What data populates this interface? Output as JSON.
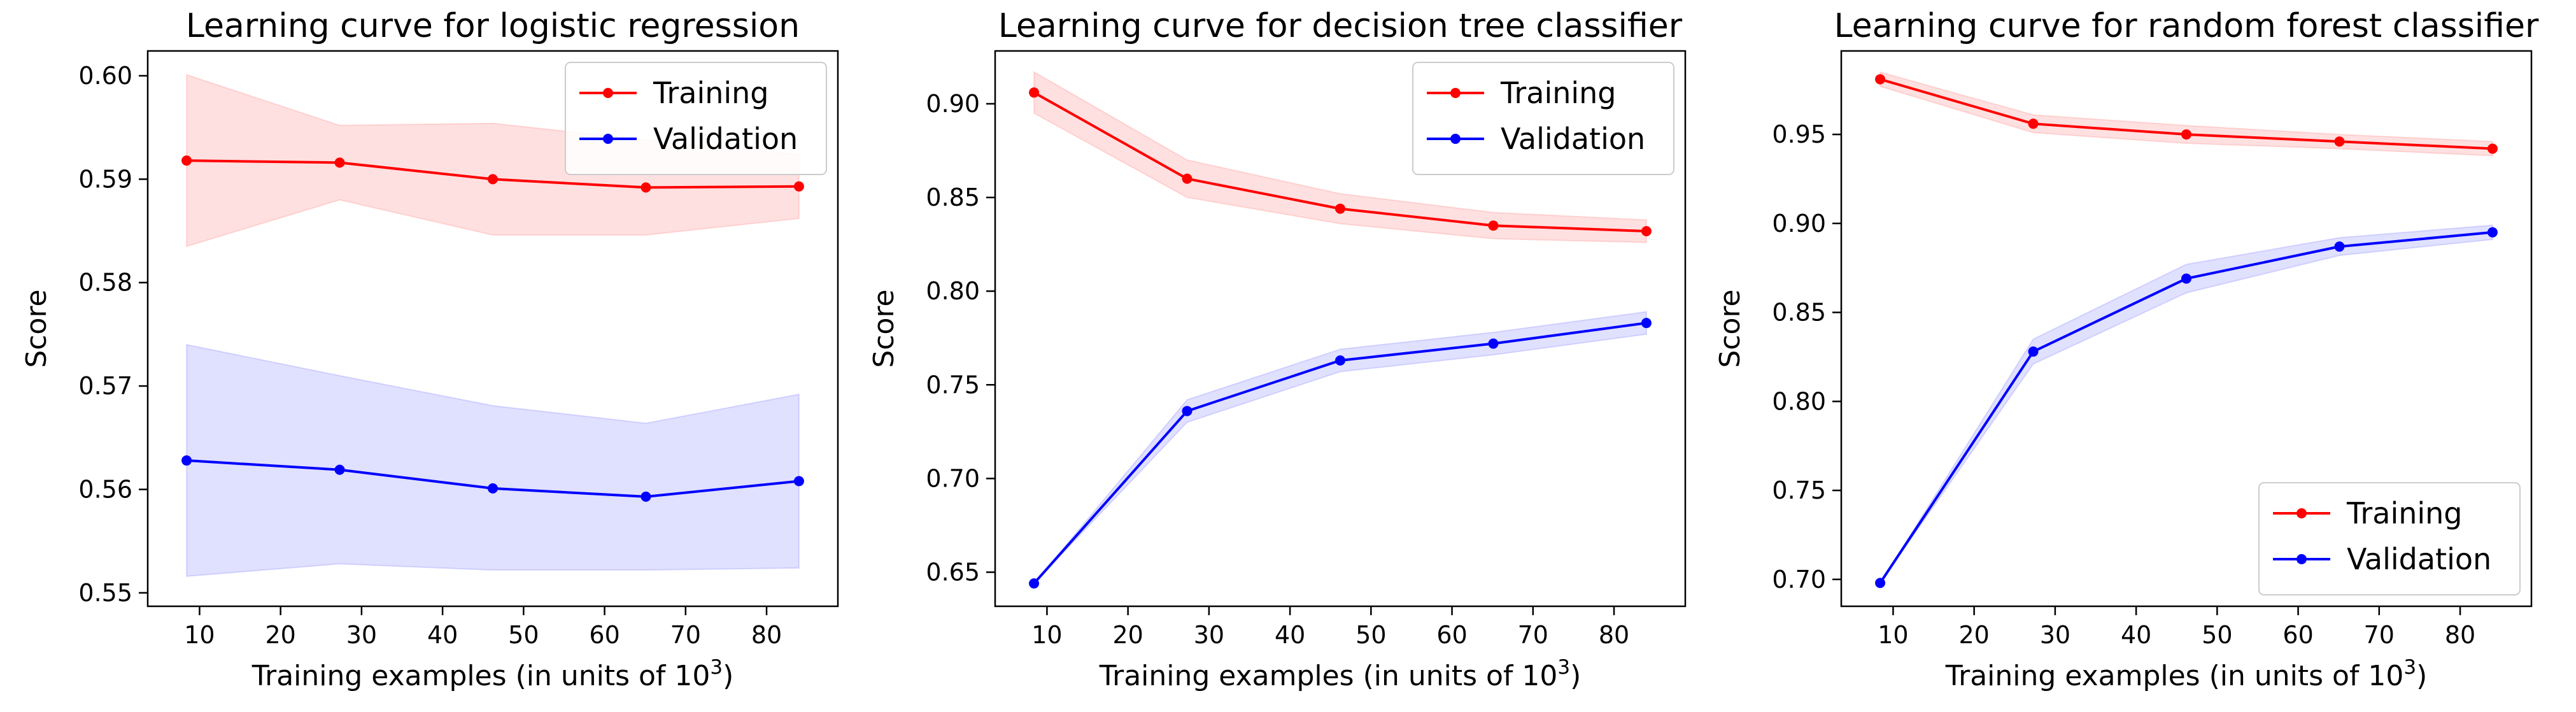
{
  "chart_data": [
    {
      "type": "line",
      "title": "Learning curve for logistic regression",
      "xlabel": "Training examples (in units of 10",
      "xlabel_sup": "3",
      "xlabel_end": ")",
      "ylabel": "Score",
      "x": [
        8.4,
        27.3,
        46.2,
        65.1,
        84.0
      ],
      "xlim": [
        3.6,
        88.8
      ],
      "ylim": [
        0.5487,
        0.6024
      ],
      "xticks": [
        10,
        20,
        30,
        40,
        50,
        60,
        70,
        80
      ],
      "xtick_labels": [
        "10",
        "20",
        "30",
        "40",
        "50",
        "60",
        "70",
        "80"
      ],
      "yticks": [
        0.55,
        0.56,
        0.57,
        0.58,
        0.59,
        0.6
      ],
      "ytick_labels": [
        "0.55",
        "0.56",
        "0.57",
        "0.58",
        "0.59",
        "0.60"
      ],
      "legend_position": "top-right",
      "grid": false,
      "series": [
        {
          "name": "Training",
          "color": "#ff0000",
          "values": [
            0.5918,
            0.5916,
            0.59,
            0.5892,
            0.5893
          ],
          "band_lower": [
            0.5835,
            0.588,
            0.5846,
            0.5846,
            0.5862
          ],
          "band_upper": [
            0.6001,
            0.5952,
            0.5954,
            0.5938,
            0.5924
          ]
        },
        {
          "name": "Validation",
          "color": "#0000ff",
          "values": [
            0.5628,
            0.5619,
            0.5601,
            0.5593,
            0.5608
          ],
          "band_lower": [
            0.5516,
            0.5528,
            0.5522,
            0.5522,
            0.5524
          ],
          "band_upper": [
            0.574,
            0.571,
            0.5681,
            0.5664,
            0.5692
          ]
        }
      ]
    },
    {
      "type": "line",
      "title": "Learning curve for decision tree classifier",
      "xlabel": "Training examples (in units of 10",
      "xlabel_sup": "3",
      "xlabel_end": ")",
      "ylabel": "Score",
      "x": [
        8.4,
        27.3,
        46.2,
        65.1,
        84.0
      ],
      "xlim": [
        3.6,
        88.8
      ],
      "ylim": [
        0.6318,
        0.9282
      ],
      "xticks": [
        10,
        20,
        30,
        40,
        50,
        60,
        70,
        80
      ],
      "xtick_labels": [
        "10",
        "20",
        "30",
        "40",
        "50",
        "60",
        "70",
        "80"
      ],
      "yticks": [
        0.65,
        0.7,
        0.75,
        0.8,
        0.85,
        0.9
      ],
      "ytick_labels": [
        "0.65",
        "0.70",
        "0.75",
        "0.80",
        "0.85",
        "0.90"
      ],
      "legend_position": "top-right",
      "grid": false,
      "series": [
        {
          "name": "Training",
          "color": "#ff0000",
          "values": [
            0.906,
            0.86,
            0.844,
            0.835,
            0.832
          ],
          "band_lower": [
            0.895,
            0.85,
            0.836,
            0.828,
            0.826
          ],
          "band_upper": [
            0.917,
            0.87,
            0.852,
            0.842,
            0.838
          ]
        },
        {
          "name": "Validation",
          "color": "#0000ff",
          "values": [
            0.644,
            0.736,
            0.763,
            0.772,
            0.783
          ],
          "band_lower": [
            0.644,
            0.73,
            0.757,
            0.766,
            0.777
          ],
          "band_upper": [
            0.644,
            0.742,
            0.769,
            0.778,
            0.789
          ]
        }
      ]
    },
    {
      "type": "line",
      "title": "Learning curve for random forest classifier",
      "xlabel": "Training examples (in units of 10",
      "xlabel_sup": "3",
      "xlabel_end": ")",
      "ylabel": "Score",
      "x": [
        8.4,
        27.3,
        46.2,
        65.1,
        84.0
      ],
      "xlim": [
        3.6,
        88.8
      ],
      "ylim": [
        0.6849,
        0.9969
      ],
      "xticks": [
        10,
        20,
        30,
        40,
        50,
        60,
        70,
        80
      ],
      "xtick_labels": [
        "10",
        "20",
        "30",
        "40",
        "50",
        "60",
        "70",
        "80"
      ],
      "yticks": [
        0.7,
        0.75,
        0.8,
        0.85,
        0.9,
        0.95
      ],
      "ytick_labels": [
        "0.70",
        "0.75",
        "0.80",
        "0.85",
        "0.90",
        "0.95"
      ],
      "legend_position": "bottom-right",
      "grid": false,
      "series": [
        {
          "name": "Training",
          "color": "#ff0000",
          "values": [
            0.981,
            0.956,
            0.95,
            0.946,
            0.942
          ],
          "band_lower": [
            0.977,
            0.951,
            0.945,
            0.942,
            0.938
          ],
          "band_upper": [
            0.985,
            0.961,
            0.955,
            0.95,
            0.946
          ]
        },
        {
          "name": "Validation",
          "color": "#0000ff",
          "values": [
            0.698,
            0.828,
            0.869,
            0.887,
            0.895
          ],
          "band_lower": [
            0.698,
            0.821,
            0.861,
            0.882,
            0.891
          ],
          "band_upper": [
            0.698,
            0.835,
            0.877,
            0.892,
            0.899
          ]
        }
      ]
    }
  ]
}
